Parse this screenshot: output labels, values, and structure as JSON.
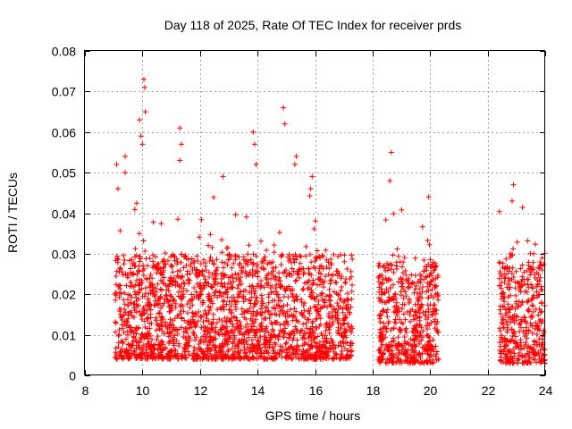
{
  "chart_data": {
    "type": "scatter",
    "title": "Day 118 of 2025, Rate Of TEC Index for receiver prds",
    "xlabel": "GPS time / hours",
    "ylabel": "ROTI / TECUs",
    "xlim": [
      8,
      24
    ],
    "ylim": [
      0,
      0.08
    ],
    "x_ticks": [
      8,
      10,
      12,
      14,
      16,
      18,
      20,
      22,
      24
    ],
    "y_ticks": [
      0,
      0.01,
      0.02,
      0.03,
      0.04,
      0.05,
      0.06,
      0.07,
      0.08
    ],
    "x_tick_labels": [
      "8",
      "10",
      "12",
      "14",
      "16",
      "18",
      "20",
      "22",
      "24"
    ],
    "y_tick_labels": [
      "0",
      "0.01",
      "0.02",
      "0.03",
      "0.04",
      "0.05",
      "0.06",
      "0.07",
      "0.08"
    ],
    "grid": true,
    "marker": "+",
    "marker_color": "#ff0000",
    "series": [
      {
        "name": "ROTI",
        "data_ranges": [
          {
            "x_start": 9.05,
            "x_end": 17.3,
            "typical_min": 0.004,
            "typical_max": 0.03
          },
          {
            "x_start": 18.2,
            "x_end": 20.3,
            "typical_min": 0.003,
            "typical_max": 0.028
          },
          {
            "x_start": 22.4,
            "x_end": 24.0,
            "typical_min": 0.003,
            "typical_max": 0.028
          }
        ],
        "highlights": [
          {
            "x": 9.1,
            "y": 0.052
          },
          {
            "x": 9.15,
            "y": 0.046
          },
          {
            "x": 9.4,
            "y": 0.054
          },
          {
            "x": 9.4,
            "y": 0.05
          },
          {
            "x": 9.9,
            "y": 0.063
          },
          {
            "x": 9.95,
            "y": 0.059
          },
          {
            "x": 10.0,
            "y": 0.057
          },
          {
            "x": 10.05,
            "y": 0.073
          },
          {
            "x": 10.08,
            "y": 0.071
          },
          {
            "x": 10.1,
            "y": 0.065
          },
          {
            "x": 11.3,
            "y": 0.061
          },
          {
            "x": 11.35,
            "y": 0.057
          },
          {
            "x": 11.3,
            "y": 0.053
          },
          {
            "x": 12.8,
            "y": 0.049
          },
          {
            "x": 13.85,
            "y": 0.06
          },
          {
            "x": 13.9,
            "y": 0.057
          },
          {
            "x": 13.95,
            "y": 0.052
          },
          {
            "x": 14.9,
            "y": 0.066
          },
          {
            "x": 14.95,
            "y": 0.062
          },
          {
            "x": 15.35,
            "y": 0.054
          },
          {
            "x": 15.3,
            "y": 0.052
          },
          {
            "x": 15.9,
            "y": 0.049
          },
          {
            "x": 15.85,
            "y": 0.046
          },
          {
            "x": 18.65,
            "y": 0.055
          },
          {
            "x": 18.6,
            "y": 0.048
          },
          {
            "x": 19.95,
            "y": 0.044
          },
          {
            "x": 22.9,
            "y": 0.047
          },
          {
            "x": 22.85,
            "y": 0.043
          },
          {
            "x": 23.6,
            "y": 0.03
          },
          {
            "x": 23.9,
            "y": 0.029
          }
        ]
      }
    ]
  }
}
